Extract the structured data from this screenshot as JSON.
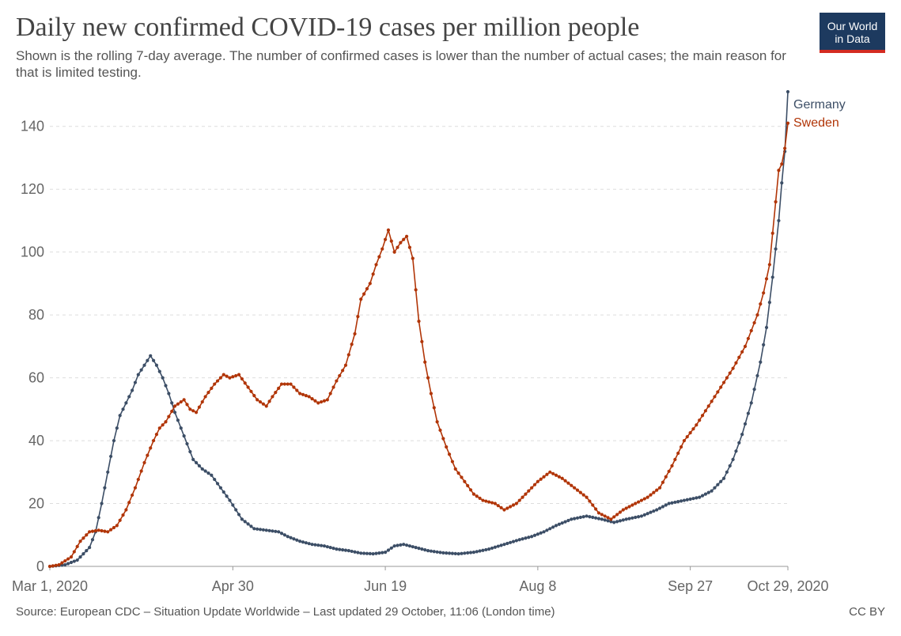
{
  "title": "Daily new confirmed COVID-19 cases per million people",
  "subtitle": "Shown is the rolling 7-day average. The number of confirmed cases is lower than the number of actual cases; the main reason for that is limited testing.",
  "logo": {
    "line1": "Our World",
    "line2": "in Data"
  },
  "source": "Source: European CDC – Situation Update Worldwide – Last updated 29 October, 11:06 (London time)",
  "license": "CC BY",
  "colors": {
    "Germany": "#3c4e66",
    "Sweden": "#b13507",
    "grid": "#dddddd",
    "logo_bg": "#1d3a5f",
    "logo_bar": "#d42b21"
  },
  "chart_data": {
    "type": "line",
    "xlabel": "",
    "ylabel": "",
    "x_range": [
      "2020-03-01",
      "2020-10-29"
    ],
    "xticks": [
      {
        "date": "2020-03-01",
        "label": "Mar 1, 2020"
      },
      {
        "date": "2020-04-30",
        "label": "Apr 30"
      },
      {
        "date": "2020-06-19",
        "label": "Jun 19"
      },
      {
        "date": "2020-08-08",
        "label": "Aug 8"
      },
      {
        "date": "2020-09-27",
        "label": "Sep 27"
      },
      {
        "date": "2020-10-29",
        "label": "Oct 29, 2020"
      }
    ],
    "ylim": [
      0,
      150
    ],
    "yticks": [
      0,
      20,
      40,
      60,
      80,
      100,
      120,
      140
    ],
    "grid": "horizontal dashed",
    "legend": "end-of-line labels (right)",
    "series": [
      {
        "name": "Germany",
        "keypoints": [
          [
            "2020-03-01",
            0
          ],
          [
            "2020-03-06",
            0.5
          ],
          [
            "2020-03-10",
            2
          ],
          [
            "2020-03-14",
            6
          ],
          [
            "2020-03-16",
            11
          ],
          [
            "2020-03-18",
            20
          ],
          [
            "2020-03-20",
            30
          ],
          [
            "2020-03-22",
            40
          ],
          [
            "2020-03-24",
            48
          ],
          [
            "2020-03-26",
            52
          ],
          [
            "2020-03-28",
            56
          ],
          [
            "2020-03-30",
            61
          ],
          [
            "2020-04-01",
            64
          ],
          [
            "2020-04-03",
            67
          ],
          [
            "2020-04-05",
            64
          ],
          [
            "2020-04-07",
            60
          ],
          [
            "2020-04-09",
            55
          ],
          [
            "2020-04-11",
            49
          ],
          [
            "2020-04-13",
            44
          ],
          [
            "2020-04-15",
            39
          ],
          [
            "2020-04-17",
            34
          ],
          [
            "2020-04-20",
            31
          ],
          [
            "2020-04-23",
            29
          ],
          [
            "2020-04-26",
            25
          ],
          [
            "2020-04-29",
            21
          ],
          [
            "2020-05-03",
            15
          ],
          [
            "2020-05-07",
            12
          ],
          [
            "2020-05-11",
            11.5
          ],
          [
            "2020-05-15",
            11
          ],
          [
            "2020-05-18",
            9.5
          ],
          [
            "2020-05-22",
            8
          ],
          [
            "2020-05-26",
            7
          ],
          [
            "2020-05-30",
            6.5
          ],
          [
            "2020-06-03",
            5.5
          ],
          [
            "2020-06-07",
            5
          ],
          [
            "2020-06-11",
            4.2
          ],
          [
            "2020-06-15",
            4
          ],
          [
            "2020-06-19",
            4.5
          ],
          [
            "2020-06-22",
            6.5
          ],
          [
            "2020-06-25",
            7
          ],
          [
            "2020-06-29",
            6
          ],
          [
            "2020-07-03",
            5
          ],
          [
            "2020-07-08",
            4.3
          ],
          [
            "2020-07-13",
            4
          ],
          [
            "2020-07-18",
            4.5
          ],
          [
            "2020-07-23",
            5.5
          ],
          [
            "2020-07-28",
            7
          ],
          [
            "2020-08-02",
            8.5
          ],
          [
            "2020-08-06",
            9.5
          ],
          [
            "2020-08-10",
            11
          ],
          [
            "2020-08-14",
            13
          ],
          [
            "2020-08-19",
            15
          ],
          [
            "2020-08-24",
            16
          ],
          [
            "2020-08-29",
            15
          ],
          [
            "2020-09-02",
            14
          ],
          [
            "2020-09-06",
            15
          ],
          [
            "2020-09-11",
            16
          ],
          [
            "2020-09-16",
            18
          ],
          [
            "2020-09-20",
            20
          ],
          [
            "2020-09-25",
            21
          ],
          [
            "2020-09-30",
            22
          ],
          [
            "2020-10-04",
            24
          ],
          [
            "2020-10-08",
            28
          ],
          [
            "2020-10-11",
            34
          ],
          [
            "2020-10-14",
            42
          ],
          [
            "2020-10-17",
            52
          ],
          [
            "2020-10-20",
            65
          ],
          [
            "2020-10-22",
            76
          ],
          [
            "2020-10-24",
            92
          ],
          [
            "2020-10-26",
            110
          ],
          [
            "2020-10-27",
            122
          ],
          [
            "2020-10-28",
            132
          ],
          [
            "2020-10-29",
            151
          ]
        ]
      },
      {
        "name": "Sweden",
        "keypoints": [
          [
            "2020-03-01",
            0
          ],
          [
            "2020-03-04",
            0.5
          ],
          [
            "2020-03-08",
            3
          ],
          [
            "2020-03-11",
            8
          ],
          [
            "2020-03-14",
            11
          ],
          [
            "2020-03-17",
            11.5
          ],
          [
            "2020-03-20",
            11
          ],
          [
            "2020-03-23",
            13
          ],
          [
            "2020-03-26",
            18
          ],
          [
            "2020-03-29",
            25
          ],
          [
            "2020-04-01",
            33
          ],
          [
            "2020-04-04",
            40
          ],
          [
            "2020-04-06",
            44
          ],
          [
            "2020-04-08",
            46
          ],
          [
            "2020-04-11",
            51
          ],
          [
            "2020-04-14",
            53
          ],
          [
            "2020-04-16",
            50
          ],
          [
            "2020-04-18",
            49
          ],
          [
            "2020-04-21",
            54
          ],
          [
            "2020-04-24",
            58
          ],
          [
            "2020-04-27",
            61
          ],
          [
            "2020-04-29",
            60
          ],
          [
            "2020-05-02",
            61
          ],
          [
            "2020-05-05",
            57
          ],
          [
            "2020-05-08",
            53
          ],
          [
            "2020-05-11",
            51
          ],
          [
            "2020-05-13",
            54
          ],
          [
            "2020-05-16",
            58
          ],
          [
            "2020-05-19",
            58
          ],
          [
            "2020-05-22",
            55
          ],
          [
            "2020-05-25",
            54
          ],
          [
            "2020-05-28",
            52
          ],
          [
            "2020-05-31",
            53
          ],
          [
            "2020-06-03",
            59
          ],
          [
            "2020-06-06",
            64
          ],
          [
            "2020-06-09",
            74
          ],
          [
            "2020-06-11",
            85
          ],
          [
            "2020-06-14",
            90
          ],
          [
            "2020-06-16",
            96
          ],
          [
            "2020-06-18",
            101
          ],
          [
            "2020-06-20",
            107
          ],
          [
            "2020-06-22",
            100
          ],
          [
            "2020-06-24",
            103
          ],
          [
            "2020-06-26",
            105
          ],
          [
            "2020-06-28",
            98
          ],
          [
            "2020-06-30",
            78
          ],
          [
            "2020-07-02",
            65
          ],
          [
            "2020-07-04",
            55
          ],
          [
            "2020-07-06",
            46
          ],
          [
            "2020-07-09",
            38
          ],
          [
            "2020-07-12",
            31
          ],
          [
            "2020-07-15",
            27
          ],
          [
            "2020-07-18",
            23
          ],
          [
            "2020-07-21",
            21
          ],
          [
            "2020-07-25",
            20
          ],
          [
            "2020-07-28",
            18
          ],
          [
            "2020-08-01",
            20
          ],
          [
            "2020-08-04",
            23
          ],
          [
            "2020-08-08",
            27
          ],
          [
            "2020-08-12",
            30
          ],
          [
            "2020-08-16",
            28
          ],
          [
            "2020-08-20",
            25
          ],
          [
            "2020-08-24",
            22
          ],
          [
            "2020-08-28",
            17
          ],
          [
            "2020-09-01",
            15
          ],
          [
            "2020-09-05",
            18
          ],
          [
            "2020-09-09",
            20
          ],
          [
            "2020-09-13",
            22
          ],
          [
            "2020-09-17",
            25
          ],
          [
            "2020-09-21",
            32
          ],
          [
            "2020-09-25",
            40
          ],
          [
            "2020-09-29",
            45
          ],
          [
            "2020-10-03",
            51
          ],
          [
            "2020-10-07",
            57
          ],
          [
            "2020-10-11",
            63
          ],
          [
            "2020-10-15",
            70
          ],
          [
            "2020-10-19",
            80
          ],
          [
            "2020-10-21",
            87
          ],
          [
            "2020-10-23",
            96
          ],
          [
            "2020-10-24",
            106
          ],
          [
            "2020-10-26",
            126
          ],
          [
            "2020-10-27",
            128
          ],
          [
            "2020-10-28",
            133
          ],
          [
            "2020-10-29",
            141
          ]
        ]
      }
    ]
  }
}
